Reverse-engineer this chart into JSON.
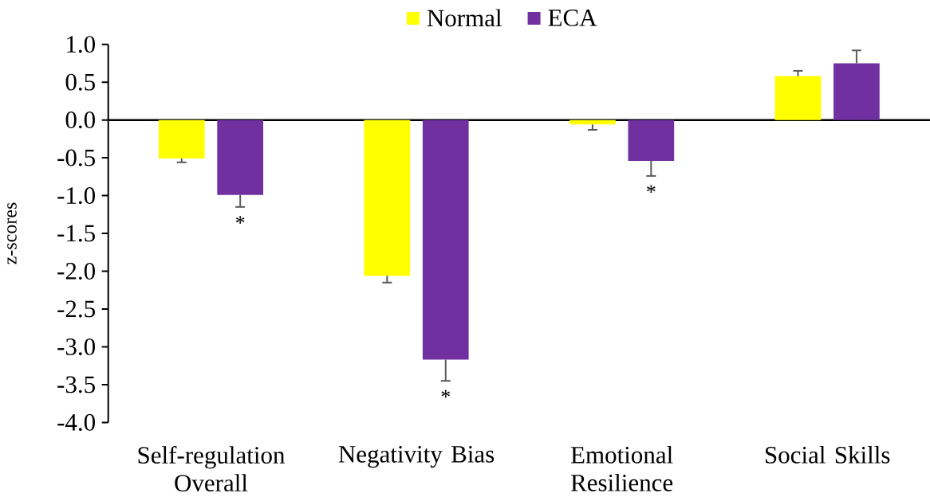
{
  "chart_data": {
    "type": "bar",
    "categories": [
      "Self-regulation Overall",
      "Negativity Bias",
      "Emotional Resilience",
      "Social Skills"
    ],
    "series": [
      {
        "name": "Normal",
        "color": "#ffff00",
        "values": [
          -0.51,
          -2.06,
          -0.06,
          0.58
        ],
        "errors": [
          [
            -0.56,
            -0.51
          ],
          [
            -2.15,
            -2.06
          ],
          [
            -0.13,
            -0.06
          ],
          [
            0.58,
            0.65
          ]
        ]
      },
      {
        "name": "ECA",
        "color": "#7030a0",
        "values": [
          -0.99,
          -3.17,
          -0.54,
          0.75
        ],
        "errors": [
          [
            -1.15,
            -0.99
          ],
          [
            -3.45,
            -3.17
          ],
          [
            -0.74,
            -0.54
          ],
          [
            0.75,
            0.92
          ]
        ]
      }
    ],
    "ylabel": "z-scores",
    "ylim": [
      -4,
      1
    ],
    "yticks": [
      {
        "value": -4,
        "label": "-4.0"
      },
      -3.5,
      {
        "value": -3,
        "label": "-3.0"
      },
      -2.5,
      {
        "value": -2,
        "label": "-2.0"
      },
      -1.5,
      {
        "value": -1,
        "label": "-1.0"
      },
      -0.5,
      {
        "value": 0,
        "label": "0.0"
      },
      0.5,
      {
        "value": 1,
        "label": "1.0"
      }
    ],
    "legend": "top",
    "annotations": [
      "*",
      "*",
      "*"
    ]
  }
}
